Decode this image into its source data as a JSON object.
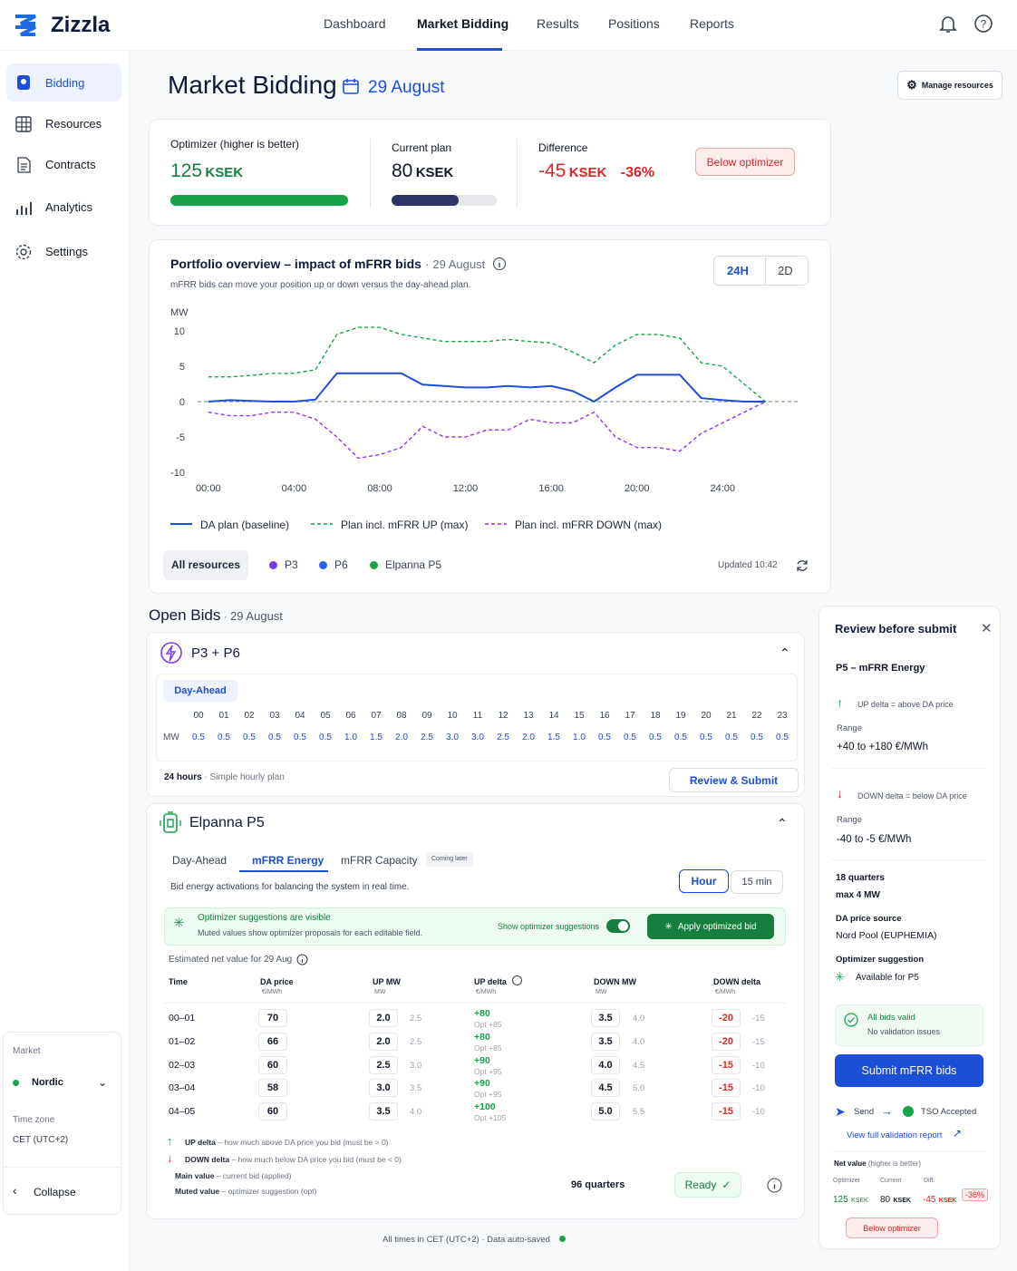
{
  "brand": "Zizzla",
  "nav": [
    "Dashboard",
    "Market Bidding",
    "Results",
    "Positions",
    "Reports"
  ],
  "sidebar": {
    "items": [
      "Bidding",
      "Resources",
      "Contracts",
      "Analytics",
      "Settings"
    ],
    "market_label": "Market",
    "market": "Nordic",
    "timezone_label": "Time zone",
    "timezone": "CET (UTC+2)",
    "collapse": "Collapse"
  },
  "header": {
    "title": "Market Bidding",
    "date": "29 August",
    "manage": "Manage resources"
  },
  "kpis": {
    "optimizer_label": "Optimizer (higher is better)",
    "optimizer_value": 125,
    "unit": "KSEK",
    "current_label": "Current plan",
    "current_value": 80,
    "difference_label": "Difference",
    "difference_value": -45,
    "difference_pct": "-36%",
    "badge": "Below optimizer"
  },
  "chart_data": {
    "type": "line",
    "title": "Portfolio overview – impact of mFRR bids",
    "subtitle": "mFRR bids can move your position up or down versus the day-ahead plan.",
    "y_label": "MW",
    "ranges": [
      "24H",
      "2D"
    ],
    "x": [
      0,
      1,
      2,
      3,
      4,
      5,
      6,
      7,
      8,
      9,
      10,
      11,
      12,
      13,
      14,
      15,
      16,
      17,
      18,
      19,
      20,
      21,
      22,
      23,
      24,
      25,
      26
    ],
    "xlim": [
      -0.5,
      27.5
    ],
    "xticks": [
      {
        "value": 0,
        "label": "00:00"
      },
      {
        "value": 4,
        "label": "04:00"
      },
      {
        "value": 8,
        "label": "08:00"
      },
      {
        "value": 12,
        "label": "12:00"
      },
      {
        "value": 16,
        "label": "16:00"
      },
      {
        "value": 20,
        "label": "20:00"
      },
      {
        "value": 24,
        "label": "24:00"
      }
    ],
    "ylim": [
      -10,
      10
    ],
    "yticks": [
      10,
      5,
      0,
      -5,
      -10
    ],
    "series": [
      {
        "name": "DA plan (baseline)",
        "color": "#1d4ed8",
        "dash": false,
        "values": [
          0,
          0.2,
          0.1,
          0,
          0,
          0.3,
          4,
          4,
          4,
          4,
          2.4,
          2.2,
          2,
          2,
          2.2,
          2,
          2.2,
          1.5,
          0,
          2,
          3.8,
          3.8,
          3.8,
          0.5,
          0.2,
          0,
          0
        ]
      },
      {
        "name": "Plan incl. mFRR UP (max)",
        "color": "#16a34a",
        "dash": true,
        "values": [
          3.5,
          3.5,
          3.7,
          4,
          4,
          4.5,
          9.5,
          10.5,
          10.5,
          9.5,
          9,
          8.5,
          8.5,
          8.5,
          8.8,
          8.5,
          8.3,
          7,
          5.5,
          8,
          9.5,
          9.5,
          9,
          5.5,
          5,
          2.5,
          0
        ]
      },
      {
        "name": "Plan incl. mFRR DOWN (max)",
        "color": "#9333ea",
        "dash": true,
        "values": [
          -1.5,
          -2,
          -2,
          -1.5,
          -1.5,
          -2.5,
          -5,
          -8,
          -7.5,
          -6.5,
          -3.5,
          -5,
          -5,
          -4,
          -4,
          -2.5,
          -3,
          -3,
          -1.5,
          -5,
          -6.5,
          -6.5,
          -7,
          -4.5,
          -3,
          -1.5,
          0
        ]
      }
    ],
    "filters": [
      {
        "name": "All resources"
      },
      {
        "name": "P3",
        "color": "#7c3aed"
      },
      {
        "name": "P6",
        "color": "#2563eb"
      },
      {
        "name": "Elpanna P5",
        "color": "#16a34a"
      }
    ],
    "updated": "Updated 10:42"
  },
  "open_bids": {
    "title": "Open Bids"
  },
  "p3p6": {
    "name": "P3 + P6",
    "tab": "Day-Ahead",
    "mw_label": "MW",
    "hours": [
      "00",
      "01",
      "02",
      "03",
      "04",
      "05",
      "06",
      "07",
      "08",
      "09",
      "10",
      "11",
      "12",
      "13",
      "14",
      "15",
      "16",
      "17",
      "18",
      "19",
      "20",
      "21",
      "22",
      "23"
    ],
    "mw": [
      "0.5",
      "0.5",
      "0.5",
      "0.5",
      "0.5",
      "0.5",
      "1.0",
      "1.5",
      "2.0",
      "2.5",
      "3.0",
      "3.0",
      "2.5",
      "2.0",
      "1.5",
      "1.0",
      "0.5",
      "0.5",
      "0.5",
      "0.5",
      "0.5",
      "0.5",
      "0.5",
      "0.5"
    ],
    "footer_bold": "24 hours",
    "footer": "Simple hourly plan",
    "button": "Review & Submit"
  },
  "p5": {
    "name": "Elpanna P5",
    "tabs": [
      "Day-Ahead",
      "mFRR Energy",
      "mFRR Capacity"
    ],
    "coming": "Coming later",
    "desc": "Bid energy activations for balancing the system in real time.",
    "granularity": [
      "Hour",
      "15 min"
    ],
    "banner": {
      "title": "Optimizer suggestions are visible",
      "text": "Muted values show optimizer proposals for each editable field.",
      "toggle": "Show optimizer suggestions",
      "button": "Apply optimized bid"
    },
    "estimated": "Estimated net value for 29 Aug",
    "headers": [
      {
        "label": "Time"
      },
      {
        "label": "DA price",
        "unit": "€/MWh"
      },
      {
        "label": "UP MW",
        "unit": "MW"
      },
      {
        "label": "UP delta",
        "unit": "€/MWh"
      },
      {
        "label": "DOWN MW",
        "unit": "MW"
      },
      {
        "label": "DOWN delta",
        "unit": "€/MWh"
      }
    ],
    "rows": [
      [
        "00–01",
        "70",
        "2.0",
        "2.5",
        "+80",
        "Opt +85",
        "3.5",
        "4.0",
        "-20",
        "-15"
      ],
      [
        "01–02",
        "66",
        "2.0",
        "2.5",
        "+80",
        "Opt +85",
        "3.5",
        "4.0",
        "-20",
        "-15"
      ],
      [
        "02–03",
        "60",
        "2.5",
        "3.0",
        "+90",
        "Opt +95",
        "4.0",
        "4.5",
        "-15",
        "-10"
      ],
      [
        "03–04",
        "58",
        "3.0",
        "3.5",
        "+90",
        "Opt +95",
        "4.5",
        "5.0",
        "-15",
        "-10"
      ],
      [
        "04–05",
        "60",
        "3.5",
        "4.0",
        "+100",
        "Opt +105",
        "5.0",
        "5.5",
        "-15",
        "-10"
      ]
    ],
    "notes": [
      [
        "UP delta",
        "how much above DA price you bid (must be > 0)"
      ],
      [
        "DOWN delta",
        "how much below DA price you bid (must be < 0)"
      ],
      [
        "Main value",
        "current bid (applied)"
      ],
      [
        "Muted value",
        "optimizer suggestion (opt)"
      ]
    ],
    "quarters": "96 quarters",
    "ready": "Ready"
  },
  "review": {
    "title": "Review before submit",
    "resource": "P5 – mFRR Energy",
    "up": "UP delta = above DA price",
    "range_label": "Range",
    "up_range": "+40 to +180 €/MWh",
    "down": "DOWN delta = below DA price",
    "down_range": "-40 to -5 €/MWh",
    "quarters": "18 quarters",
    "max": "max 4 MW",
    "source_label": "DA price source",
    "source": "Nord Pool (EUPHEMIA)",
    "opt_label": "Optimizer suggestion",
    "opt": "Available for P5",
    "valid": "All bids valid",
    "valid_sub": "No validation issues",
    "submit": "Submit mFRR bids",
    "send": "Send",
    "accepted": "TSO Accepted",
    "report": "View full validation report",
    "net_label": "Net value",
    "net_note": "(higher is better)",
    "cols": [
      "Optimizer",
      "Current",
      "Diff."
    ]
  },
  "footer": {
    "times": "All times in CET (UTC+2)",
    "saved": "Data auto-saved"
  }
}
